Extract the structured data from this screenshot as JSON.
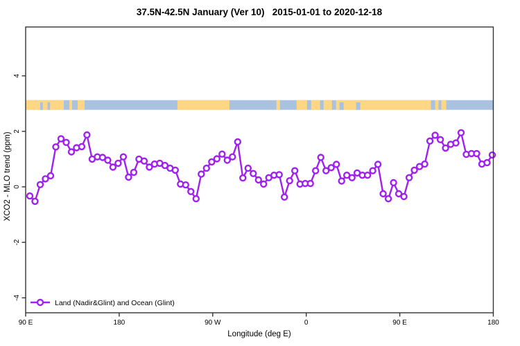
{
  "title": {
    "text": "37.5N-42.5N January (Ver 10)   2015-01-01 to 2020-12-18"
  },
  "legend": {
    "label": "Land (Nadir&Glint) and Ocean (Glint)"
  },
  "axes": {
    "x": {
      "label": "Longitude (deg E)",
      "ticks": [
        {
          "deg": 90,
          "label": "90 E"
        },
        {
          "deg": 180,
          "label": "180"
        },
        {
          "deg": 270,
          "label": "90 W"
        },
        {
          "deg": 360,
          "label": "0"
        },
        {
          "deg": 450,
          "label": "90 E"
        },
        {
          "deg": 540,
          "label": "180"
        }
      ]
    },
    "y": {
      "label": "XCO2 - MLO trend (ppm)",
      "ticks": [
        {
          "value": 4,
          "label": "4"
        },
        {
          "value": 2,
          "label": "2"
        },
        {
          "value": 0,
          "label": "0"
        },
        {
          "value": -2,
          "label": "-2"
        },
        {
          "value": -4,
          "label": "-4"
        }
      ]
    }
  },
  "colors": {
    "series": "#A020F0",
    "marker_fill": "#FFFFFF",
    "land": "#FFD784",
    "ocean": "#A9C2DF",
    "frame": "#333333"
  },
  "chart_data": {
    "type": "line",
    "title": "37.5N-42.5N January (Ver 10)   2015-01-01 to 2020-12-18",
    "xlabel": "Longitude (deg E)",
    "ylabel": "XCO2 - MLO trend (ppm)",
    "xlim_deg_east": [
      90,
      540
    ],
    "ylim": [
      -4.6,
      5.7
    ],
    "grid": false,
    "legend_position": "bottom-left",
    "x_deg_east": [
      94,
      99,
      104,
      109,
      114,
      119,
      124,
      129,
      134,
      139,
      144,
      149,
      154,
      159,
      164,
      169,
      174,
      179,
      184,
      189,
      194,
      199,
      204,
      209,
      214,
      219,
      224,
      229,
      234,
      239,
      244,
      249,
      254,
      259,
      264,
      269,
      274,
      279,
      284,
      289,
      294,
      299,
      304,
      309,
      314,
      319,
      324,
      329,
      334,
      339,
      344,
      349,
      354,
      359,
      364,
      369,
      374,
      379,
      384,
      389,
      394,
      399,
      404,
      409,
      414,
      419,
      424,
      429,
      434,
      439,
      444,
      449,
      454,
      459,
      464,
      469,
      474,
      479,
      484,
      489,
      494,
      499,
      504,
      509,
      514,
      519,
      524,
      529,
      534,
      539
    ],
    "series": [
      {
        "name": "Land (Nadir&Glint) and Ocean (Glint)",
        "values": [
          -0.33,
          -0.52,
          0.08,
          0.29,
          0.4,
          1.44,
          1.73,
          1.6,
          1.26,
          1.41,
          1.45,
          1.87,
          1.0,
          1.08,
          1.06,
          0.96,
          0.71,
          0.85,
          1.08,
          0.35,
          0.52,
          1.0,
          0.93,
          0.71,
          0.82,
          0.85,
          0.77,
          0.67,
          0.6,
          0.1,
          0.07,
          -0.17,
          -0.43,
          0.46,
          0.67,
          0.9,
          1.01,
          1.18,
          0.96,
          1.08,
          1.62,
          0.32,
          0.67,
          0.48,
          0.25,
          0.1,
          0.33,
          0.42,
          0.44,
          -0.37,
          0.22,
          0.58,
          0.1,
          0.12,
          0.12,
          0.58,
          1.06,
          0.58,
          0.69,
          0.81,
          0.21,
          0.42,
          0.33,
          0.5,
          0.42,
          0.42,
          0.58,
          0.81,
          -0.25,
          -0.43,
          0.15,
          -0.25,
          -0.35,
          0.33,
          0.6,
          0.73,
          0.82,
          1.65,
          1.86,
          1.7,
          1.4,
          1.53,
          1.58,
          1.95,
          1.17,
          1.2,
          1.2,
          0.82,
          0.87,
          1.15
        ]
      }
    ],
    "map_strip": {
      "description": "land/ocean longitude band drawn at y ~ 2.95 ppm",
      "y_value_center": 2.95,
      "land_segments_deg": [
        [
          90,
          126.7
        ],
        [
          132,
          134.7
        ],
        [
          140,
          146.7
        ],
        [
          236,
          286
        ],
        [
          331.3,
          334.7
        ],
        [
          350.7,
          360.7
        ],
        [
          364.7,
          373.3
        ],
        [
          376.7,
          384.7
        ],
        [
          388.7,
          480
        ],
        [
          484,
          487.3
        ],
        [
          490,
          494.7
        ]
      ],
      "ocean_patches_deg": [
        [
          104,
          106.5
        ],
        [
          111,
          113.5
        ],
        [
          392,
          396
        ],
        [
          408,
          412
        ]
      ]
    }
  }
}
